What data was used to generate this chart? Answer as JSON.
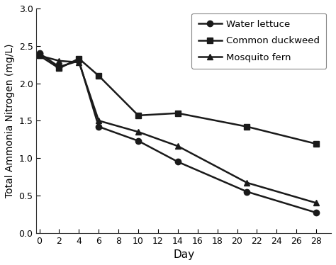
{
  "days": [
    0,
    2,
    4,
    6,
    10,
    14,
    21,
    28
  ],
  "water_lettuce": [
    2.4,
    2.22,
    2.3,
    1.42,
    1.23,
    0.95,
    0.55,
    0.27
  ],
  "common_duckweed": [
    2.37,
    2.2,
    2.33,
    2.1,
    1.57,
    1.6,
    1.42,
    1.19
  ],
  "mosquito_fern": [
    2.37,
    2.3,
    2.28,
    1.5,
    1.35,
    1.16,
    0.67,
    0.4
  ],
  "labels": [
    "Water lettuce",
    "Common duckweed",
    "Mosquito fern"
  ],
  "markers": [
    "o",
    "s",
    "^"
  ],
  "line_color": "#1a1a1a",
  "xlabel": "Day",
  "ylabel": "Total Ammonia Nitrogen (mg/L)",
  "xlim_left": -0.3,
  "xlim_right": 29.5,
  "ylim": [
    0.0,
    3.0
  ],
  "xticks": [
    0,
    2,
    4,
    6,
    8,
    10,
    12,
    14,
    16,
    18,
    20,
    22,
    24,
    26,
    28
  ],
  "yticks": [
    0.0,
    0.5,
    1.0,
    1.5,
    2.0,
    2.5,
    3.0
  ],
  "legend_loc": "upper right",
  "background_color": "#ffffff",
  "spine_color": "#aaaaaa"
}
